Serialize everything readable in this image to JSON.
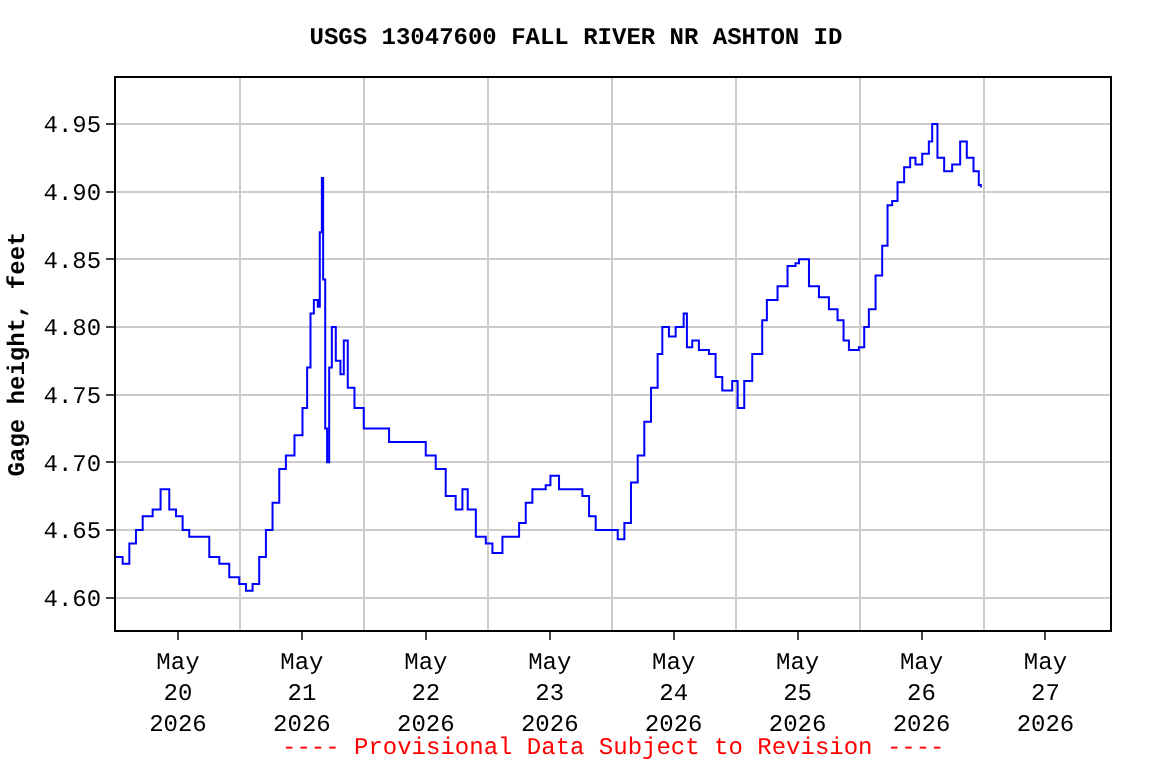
{
  "chart_data": {
    "type": "step",
    "title": "USGS 13047600 FALL RIVER NR ASHTON ID",
    "ylabel": "Gage height, feet",
    "annotations": [
      "---- Provisional Data Subject to Revision ----"
    ],
    "xlim": [
      "2026-05-19T12:00",
      "2026-05-27T12:30"
    ],
    "xticks": [
      {
        "value": "2026-05-20",
        "label": "May\n20\n2026"
      },
      {
        "value": "2026-05-21",
        "label": "May\n21\n2026"
      },
      {
        "value": "2026-05-22",
        "label": "May\n22\n2026"
      },
      {
        "value": "2026-05-23",
        "label": "May\n23\n2026"
      },
      {
        "value": "2026-05-24",
        "label": "May\n24\n2026"
      },
      {
        "value": "2026-05-25",
        "label": "May\n25\n2026"
      },
      {
        "value": "2026-05-26",
        "label": "May\n26\n2026"
      },
      {
        "value": "2026-05-27",
        "label": "May\n27\n2026"
      },
      {
        "value": "2026-05-20T12:00",
        "label": null
      },
      {
        "value": "2026-05-21T12:00",
        "label": null
      },
      {
        "value": "2026-05-22T12:00",
        "label": null
      },
      {
        "value": "2026-05-23T12:00",
        "label": null
      },
      {
        "value": "2026-05-24T12:00",
        "label": null
      },
      {
        "value": "2026-05-25T12:00",
        "label": null
      },
      {
        "value": "2026-05-26T12:00",
        "label": null
      }
    ],
    "ylim": [
      4.576,
      4.984
    ],
    "yticks": [
      {
        "value": 4.6,
        "label": "4.60"
      },
      {
        "value": 4.65,
        "label": "4.65"
      },
      {
        "value": 4.7,
        "label": "4.70"
      },
      {
        "value": 4.75,
        "label": "4.75"
      },
      {
        "value": 4.8,
        "label": "4.80"
      },
      {
        "value": 4.85,
        "label": "4.85"
      },
      {
        "value": 4.9,
        "label": "4.90"
      },
      {
        "value": 4.95,
        "label": "4.95"
      }
    ],
    "grid": true,
    "series": [
      {
        "color": "#0000ff",
        "x": [
          "2026-05-19T12:00",
          "2026-05-19T13:17",
          "2026-05-19T14:35",
          "2026-05-19T15:52",
          "2026-05-19T17:10",
          "2026-05-19T19:06",
          "2026-05-19T20:38",
          "2026-05-19T22:19",
          "2026-05-19T23:37",
          "2026-05-20T00:54",
          "2026-05-20T02:11",
          "2026-05-20T04:08",
          "2026-05-20T06:04",
          "2026-05-20T08:00",
          "2026-05-20T09:56",
          "2026-05-20T11:52",
          "2026-05-20T13:10",
          "2026-05-20T14:27",
          "2026-05-20T15:44",
          "2026-05-20T17:02",
          "2026-05-20T18:19",
          "2026-05-20T19:37",
          "2026-05-20T20:54",
          "2026-05-20T22:34",
          "2026-05-21T00:07",
          "2026-05-21T01:01",
          "2026-05-21T01:40",
          "2026-05-21T02:19",
          "2026-05-21T03:05",
          "2026-05-21T03:28",
          "2026-05-21T03:52",
          "2026-05-21T04:07",
          "2026-05-21T04:31",
          "2026-05-21T04:53",
          "2026-05-21T05:17",
          "2026-05-21T05:48",
          "2026-05-21T06:34",
          "2026-05-21T07:28",
          "2026-05-21T08:07",
          "2026-05-21T08:53",
          "2026-05-21T10:11",
          "2026-05-21T11:59",
          "2026-05-21T14:19",
          "2026-05-21T16:53",
          "2026-05-21T19:28",
          "2026-05-21T22:03",
          "2026-05-21T23:59",
          "2026-05-22T01:55",
          "2026-05-22T03:51",
          "2026-05-22T05:47",
          "2026-05-22T07:05",
          "2026-05-22T08:07",
          "2026-05-22T09:41",
          "2026-05-22T11:37",
          "2026-05-22T12:54",
          "2026-05-22T14:50",
          "2026-05-22T16:46",
          "2026-05-22T18:04",
          "2026-05-22T19:21",
          "2026-05-22T20:38",
          "2026-05-22T23:13",
          "2026-05-23T00:08",
          "2026-05-23T01:48",
          "2026-05-23T04:23",
          "2026-05-23T06:19",
          "2026-05-23T07:37",
          "2026-05-23T08:54",
          "2026-05-23T11:29",
          "2026-05-23T13:10",
          "2026-05-23T14:27",
          "2026-05-23T15:44",
          "2026-05-23T17:02",
          "2026-05-23T18:19",
          "2026-05-23T19:37",
          "2026-05-23T20:54",
          "2026-05-23T21:48",
          "2026-05-23T23:05",
          "2026-05-24T00:23",
          "2026-05-24T01:56",
          "2026-05-24T02:34",
          "2026-05-24T03:36",
          "2026-05-24T04:53",
          "2026-05-24T06:50",
          "2026-05-24T08:07",
          "2026-05-24T09:25",
          "2026-05-24T11:20",
          "2026-05-24T12:23",
          "2026-05-24T13:40",
          "2026-05-24T15:13",
          "2026-05-24T17:09",
          "2026-05-24T18:03",
          "2026-05-24T20:07",
          "2026-05-24T22:03",
          "2026-05-24T23:36",
          "2026-05-25T00:16",
          "2026-05-25T02:12",
          "2026-05-25T04:08",
          "2026-05-25T06:04",
          "2026-05-25T07:44",
          "2026-05-25T08:54",
          "2026-05-25T09:56",
          "2026-05-25T11:52",
          "2026-05-25T12:54",
          "2026-05-25T13:48",
          "2026-05-25T15:06",
          "2026-05-25T16:23",
          "2026-05-25T17:25",
          "2026-05-25T18:19",
          "2026-05-25T19:21",
          "2026-05-25T20:38",
          "2026-05-25T21:48",
          "2026-05-25T22:50",
          "2026-05-26T00:08",
          "2026-05-26T01:25",
          "2026-05-26T02:04",
          "2026-05-26T03:05",
          "2026-05-26T04:23",
          "2026-05-26T05:56",
          "2026-05-26T07:29",
          "2026-05-26T08:46",
          "2026-05-26T10:04",
          "2026-05-26T11:05",
          "2026-05-26T11:29"
        ],
        "values": [
          4.63,
          4.625,
          4.64,
          4.65,
          4.66,
          4.665,
          4.68,
          4.665,
          4.66,
          4.65,
          4.645,
          4.645,
          4.63,
          4.625,
          4.615,
          4.61,
          4.605,
          4.61,
          4.63,
          4.65,
          4.67,
          4.695,
          4.705,
          4.72,
          4.74,
          4.77,
          4.81,
          4.82,
          4.815,
          4.87,
          4.91,
          4.835,
          4.725,
          4.7,
          4.77,
          4.8,
          4.775,
          4.765,
          4.79,
          4.755,
          4.74,
          4.725,
          4.725,
          4.715,
          4.715,
          4.715,
          4.705,
          4.695,
          4.675,
          4.665,
          4.68,
          4.665,
          4.645,
          4.64,
          4.633,
          4.645,
          4.645,
          4.655,
          4.67,
          4.68,
          4.683,
          4.69,
          4.68,
          4.68,
          4.675,
          4.66,
          4.65,
          4.65,
          4.643,
          4.655,
          4.685,
          4.705,
          4.73,
          4.755,
          4.78,
          4.8,
          4.793,
          4.8,
          4.81,
          4.785,
          4.79,
          4.783,
          4.78,
          4.763,
          4.753,
          4.76,
          4.74,
          4.76,
          4.78,
          4.805,
          4.82,
          4.83,
          4.845,
          4.847,
          4.85,
          4.83,
          4.822,
          4.813,
          4.805,
          4.79,
          4.783,
          4.785,
          4.8,
          4.813,
          4.838,
          4.86,
          4.89,
          4.893,
          4.907,
          4.918,
          4.925,
          4.92,
          4.928,
          4.937,
          4.95,
          4.925,
          4.915,
          4.92,
          4.937,
          4.925,
          4.915,
          4.905,
          4.903
        ]
      }
    ]
  }
}
